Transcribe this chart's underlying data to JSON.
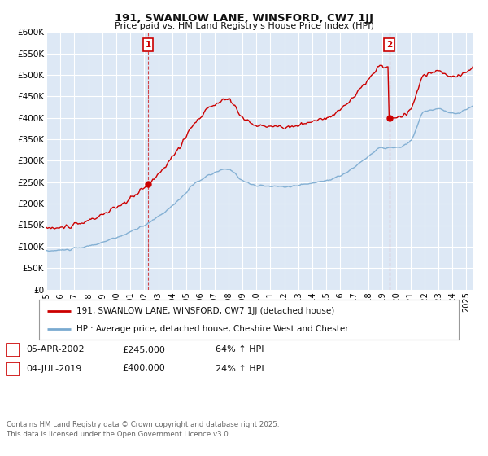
{
  "title": "191, SWANLOW LANE, WINSFORD, CW7 1JJ",
  "subtitle": "Price paid vs. HM Land Registry's House Price Index (HPI)",
  "ylabel_ticks": [
    "£0",
    "£50K",
    "£100K",
    "£150K",
    "£200K",
    "£250K",
    "£300K",
    "£350K",
    "£400K",
    "£450K",
    "£500K",
    "£550K",
    "£600K"
  ],
  "ytick_values": [
    0,
    50000,
    100000,
    150000,
    200000,
    250000,
    300000,
    350000,
    400000,
    450000,
    500000,
    550000,
    600000
  ],
  "background_color": "#ffffff",
  "plot_bg_color": "#dde8f5",
  "grid_color": "#ffffff",
  "red_line_color": "#cc0000",
  "blue_line_color": "#7aaad0",
  "marker1_date_x": 2002.27,
  "marker1_price": 245000,
  "marker2_date_x": 2019.5,
  "marker2_price": 400000,
  "annotation1": "1",
  "annotation2": "2",
  "legend_line1": "191, SWANLOW LANE, WINSFORD, CW7 1JJ (detached house)",
  "legend_line2": "HPI: Average price, detached house, Cheshire West and Chester",
  "note1_date": "05-APR-2002",
  "note1_price": "£245,000",
  "note1_hpi": "64% ↑ HPI",
  "note2_date": "04-JUL-2019",
  "note2_price": "£400,000",
  "note2_hpi": "24% ↑ HPI",
  "footer": "Contains HM Land Registry data © Crown copyright and database right 2025.\nThis data is licensed under the Open Government Licence v3.0.",
  "xmin": 1995,
  "xmax": 2025.5,
  "ymin": 0,
  "ymax": 600000
}
